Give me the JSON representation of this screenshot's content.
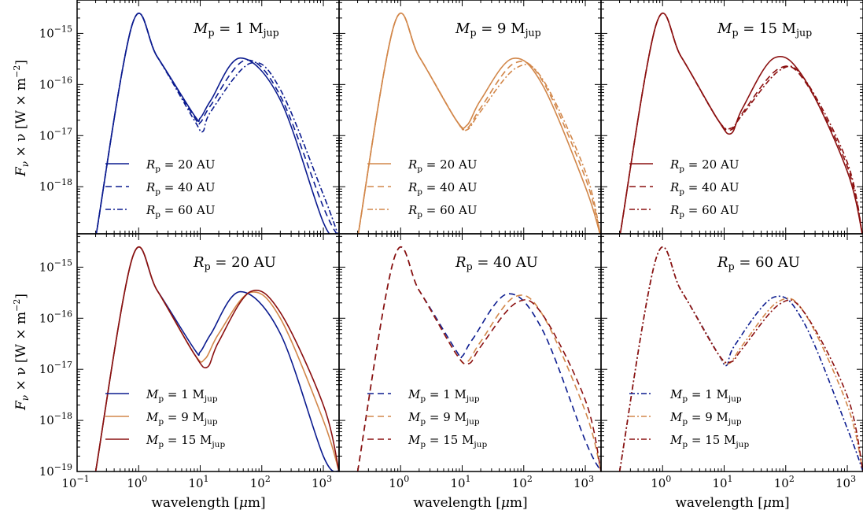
{
  "figure": {
    "ylabel_main": "F",
    "ylabel_sub": "ν",
    "ylabel_rest": " × ν  [W × m",
    "ylabel_exp": "−2",
    "ylabel_close": "]",
    "xlabel_main": "wavelength  [",
    "xlabel_mu": "μ",
    "xlabel_close": "m]"
  },
  "chart_data": [
    {
      "type": "line",
      "panel": "top-left",
      "title": {
        "var": "M",
        "sub": "p",
        "rest": " = 1 M",
        "unitsub": "jup"
      },
      "x_scale": "log",
      "y_scale": "log",
      "xlim": [
        0.1,
        1800
      ],
      "ylim": [
        1.2e-19,
        4.5e-15
      ],
      "legend_location": "lower-left",
      "series": [
        {
          "name": {
            "var": "R",
            "sub": "p",
            "rest": " = 20 AU"
          },
          "color": "#0b1b8f",
          "dash": "solid",
          "x": [
            0.2,
            0.8,
            2,
            8,
            10,
            15,
            45,
            200,
            1000,
            1800
          ],
          "y": [
            1e-19,
            1.6e-15,
            3.5e-16,
            2.5e-17,
            2.2e-17,
            5e-17,
            3.3e-16,
            5e-17,
            2e-19,
            1e-19
          ]
        },
        {
          "name": {
            "var": "R",
            "sub": "p",
            "rest": " = 40 AU"
          },
          "color": "#0b1b8f",
          "dash": "dashed",
          "x": [
            0.2,
            0.8,
            2,
            8,
            10,
            15,
            55,
            200,
            1000,
            1800
          ],
          "y": [
            1e-19,
            1.6e-15,
            3.5e-16,
            2.3e-17,
            1.8e-17,
            4e-17,
            3e-16,
            6e-17,
            4e-19,
            1e-19
          ]
        },
        {
          "name": {
            "var": "R",
            "sub": "p",
            "rest": " = 60 AU"
          },
          "color": "#0b1b8f",
          "dash": "dashdot",
          "x": [
            0.2,
            0.8,
            2,
            8,
            11,
            15,
            65,
            200,
            1000,
            1800
          ],
          "y": [
            1e-19,
            1.6e-15,
            3.5e-16,
            2e-17,
            1.2e-17,
            3e-17,
            2.6e-16,
            8e-17,
            7e-19,
            1e-19
          ]
        }
      ]
    },
    {
      "type": "line",
      "panel": "top-middle",
      "title": {
        "var": "M",
        "sub": "p",
        "rest": " = 9 M",
        "unitsub": "jup"
      },
      "x_scale": "log",
      "y_scale": "log",
      "xlim": [
        0.1,
        1800
      ],
      "ylim": [
        1.2e-19,
        4.5e-15
      ],
      "legend_location": "lower-left",
      "series": [
        {
          "name": {
            "var": "R",
            "sub": "p",
            "rest": " = 20 AU"
          },
          "color": "#d2874a",
          "dash": "solid",
          "x": [
            0.2,
            0.8,
            2,
            8,
            12,
            20,
            65,
            200,
            1000,
            1800
          ],
          "y": [
            1e-19,
            1.6e-15,
            3.5e-16,
            2e-17,
            1.6e-17,
            5e-17,
            3.2e-16,
            1e-16,
            1e-18,
            1e-19
          ]
        },
        {
          "name": {
            "var": "R",
            "sub": "p",
            "rest": " = 40 AU"
          },
          "color": "#d2874a",
          "dash": "dashed",
          "x": [
            0.2,
            0.8,
            2,
            8,
            12,
            20,
            70,
            200,
            1000,
            1800
          ],
          "y": [
            1e-19,
            1.6e-15,
            3.5e-16,
            2e-17,
            1.4e-17,
            3.5e-17,
            2.6e-16,
            1.2e-16,
            1.5e-18,
            1e-19
          ]
        },
        {
          "name": {
            "var": "R",
            "sub": "p",
            "rest": " = 60 AU"
          },
          "color": "#d2874a",
          "dash": "dashdot",
          "x": [
            0.2,
            0.8,
            2,
            8,
            12,
            20,
            75,
            200,
            1000,
            1800
          ],
          "y": [
            1e-19,
            1.6e-15,
            3.5e-16,
            2e-17,
            1.3e-17,
            3e-17,
            2.1e-16,
            1.3e-16,
            2e-18,
            1e-19
          ]
        }
      ]
    },
    {
      "type": "line",
      "panel": "top-right",
      "title": {
        "var": "M",
        "sub": "p",
        "rest": " = 15 M",
        "unitsub": "jup"
      },
      "x_scale": "log",
      "y_scale": "log",
      "xlim": [
        0.1,
        1800
      ],
      "ylim": [
        1.2e-19,
        4.5e-15
      ],
      "legend_location": "lower-left",
      "series": [
        {
          "name": {
            "var": "R",
            "sub": "p",
            "rest": " = 20 AU"
          },
          "color": "#8b1010",
          "dash": "solid",
          "x": [
            0.2,
            0.8,
            2,
            8,
            13,
            20,
            65,
            200,
            1000,
            1800
          ],
          "y": [
            1e-19,
            1.6e-15,
            3.5e-16,
            2e-17,
            1.1e-17,
            3.5e-17,
            3.3e-16,
            1.3e-16,
            2e-18,
            1e-19
          ]
        },
        {
          "name": {
            "var": "R",
            "sub": "p",
            "rest": " = 40 AU"
          },
          "color": "#8b1010",
          "dash": "dashed",
          "x": [
            0.2,
            0.8,
            2,
            8,
            13,
            20,
            75,
            200,
            1000,
            1800
          ],
          "y": [
            1e-19,
            1.6e-15,
            3.5e-16,
            2e-17,
            1.3e-17,
            2.8e-17,
            2e-16,
            1.2e-16,
            2.5e-18,
            1e-19
          ]
        },
        {
          "name": {
            "var": "R",
            "sub": "p",
            "rest": " = 60 AU"
          },
          "color": "#8b1010",
          "dash": "dashdot",
          "x": [
            0.2,
            0.8,
            2,
            8,
            13,
            20,
            80,
            200,
            1000,
            1800
          ],
          "y": [
            1e-19,
            1.6e-15,
            3.5e-16,
            2e-17,
            1.4e-17,
            2.6e-17,
            1.9e-16,
            1.3e-16,
            3e-18,
            1e-19
          ]
        }
      ]
    },
    {
      "type": "line",
      "panel": "bottom-left",
      "title": {
        "var": "R",
        "sub": "p",
        "rest": " = 20 AU",
        "unitsub": ""
      },
      "x_scale": "log",
      "y_scale": "log",
      "xlim": [
        0.1,
        1800
      ],
      "ylim": [
        1e-19,
        4.5e-15
      ],
      "legend_location": "lower-left",
      "series": [
        {
          "name": {
            "var": "M",
            "sub": "p",
            "rest": " = 1 M",
            "unitsub": "jup"
          },
          "color": "#0b1b8f",
          "dash": "solid",
          "x": [
            0.2,
            0.8,
            2,
            8,
            10,
            15,
            45,
            200,
            1000,
            1800
          ],
          "y": [
            1e-19,
            1.6e-15,
            3.5e-16,
            2.5e-17,
            2.2e-17,
            5e-17,
            3.3e-16,
            5e-17,
            2e-19,
            1e-19
          ]
        },
        {
          "name": {
            "var": "M",
            "sub": "p",
            "rest": " = 9 M",
            "unitsub": "jup"
          },
          "color": "#d2874a",
          "dash": "solid",
          "x": [
            0.2,
            0.8,
            2,
            8,
            12,
            20,
            65,
            200,
            1000,
            1800
          ],
          "y": [
            1e-19,
            1.6e-15,
            3.5e-16,
            2e-17,
            1.6e-17,
            5e-17,
            3.2e-16,
            1e-16,
            1e-18,
            1e-19
          ]
        },
        {
          "name": {
            "var": "M",
            "sub": "p",
            "rest": " = 15 M",
            "unitsub": "jup"
          },
          "color": "#8b1010",
          "dash": "solid",
          "x": [
            0.2,
            0.8,
            2,
            8,
            13,
            20,
            65,
            200,
            1000,
            1800
          ],
          "y": [
            1e-19,
            1.6e-15,
            3.5e-16,
            2e-17,
            1.1e-17,
            3.5e-17,
            3.3e-16,
            1.3e-16,
            2e-18,
            1e-19
          ]
        }
      ]
    },
    {
      "type": "line",
      "panel": "bottom-middle",
      "title": {
        "var": "R",
        "sub": "p",
        "rest": " = 40 AU",
        "unitsub": ""
      },
      "x_scale": "log",
      "y_scale": "log",
      "xlim": [
        0.1,
        1800
      ],
      "ylim": [
        1e-19,
        4.5e-15
      ],
      "legend_location": "lower-left",
      "series": [
        {
          "name": {
            "var": "M",
            "sub": "p",
            "rest": " = 1 M",
            "unitsub": "jup"
          },
          "color": "#0b1b8f",
          "dash": "dashed",
          "x": [
            0.2,
            0.8,
            2,
            8,
            10,
            15,
            55,
            200,
            1000,
            1800
          ],
          "y": [
            1e-19,
            1.6e-15,
            3.5e-16,
            2.3e-17,
            1.8e-17,
            4e-17,
            3e-16,
            6e-17,
            4e-19,
            1e-19
          ]
        },
        {
          "name": {
            "var": "M",
            "sub": "p",
            "rest": " = 9 M",
            "unitsub": "jup"
          },
          "color": "#d2874a",
          "dash": "dashed",
          "x": [
            0.2,
            0.8,
            2,
            8,
            12,
            20,
            70,
            200,
            1000,
            1800
          ],
          "y": [
            1e-19,
            1.6e-15,
            3.5e-16,
            2e-17,
            1.4e-17,
            3.5e-17,
            2.6e-16,
            1.2e-16,
            1.5e-18,
            1e-19
          ]
        },
        {
          "name": {
            "var": "M",
            "sub": "p",
            "rest": " = 15 M",
            "unitsub": "jup"
          },
          "color": "#8b1010",
          "dash": "dashed",
          "x": [
            0.2,
            0.8,
            2,
            8,
            13,
            20,
            75,
            200,
            1000,
            1800
          ],
          "y": [
            1e-19,
            1.6e-15,
            3.5e-16,
            2e-17,
            1.3e-17,
            2.8e-17,
            2e-16,
            1.2e-16,
            2.5e-18,
            1e-19
          ]
        }
      ]
    },
    {
      "type": "line",
      "panel": "bottom-right",
      "title": {
        "var": "R",
        "sub": "p",
        "rest": " = 60 AU",
        "unitsub": ""
      },
      "x_scale": "log",
      "y_scale": "log",
      "xlim": [
        0.1,
        1800
      ],
      "ylim": [
        1e-19,
        4.5e-15
      ],
      "legend_location": "lower-left",
      "series": [
        {
          "name": {
            "var": "M",
            "sub": "p",
            "rest": " = 1 M",
            "unitsub": "jup"
          },
          "color": "#0b1b8f",
          "dash": "dashdot",
          "x": [
            0.2,
            0.8,
            2,
            8,
            11,
            15,
            65,
            200,
            1000,
            1800
          ],
          "y": [
            1e-19,
            1.6e-15,
            3.5e-16,
            2e-17,
            1.2e-17,
            3e-17,
            2.6e-16,
            8e-17,
            7e-19,
            1e-19
          ]
        },
        {
          "name": {
            "var": "M",
            "sub": "p",
            "rest": " = 9 M",
            "unitsub": "jup"
          },
          "color": "#d2874a",
          "dash": "dashdot",
          "x": [
            0.2,
            0.8,
            2,
            8,
            12,
            20,
            75,
            200,
            1000,
            1800
          ],
          "y": [
            1e-19,
            1.6e-15,
            3.5e-16,
            2e-17,
            1.3e-17,
            3e-17,
            2.1e-16,
            1.3e-16,
            2e-18,
            1e-19
          ]
        },
        {
          "name": {
            "var": "M",
            "sub": "p",
            "rest": " = 15 M",
            "unitsub": "jup"
          },
          "color": "#8b1010",
          "dash": "dashdot",
          "x": [
            0.2,
            0.8,
            2,
            8,
            13,
            20,
            80,
            200,
            1000,
            1800
          ],
          "y": [
            1e-19,
            1.6e-15,
            3.5e-16,
            2e-17,
            1.4e-17,
            2.6e-17,
            1.9e-16,
            1.3e-16,
            3e-18,
            1e-19
          ]
        }
      ]
    }
  ]
}
